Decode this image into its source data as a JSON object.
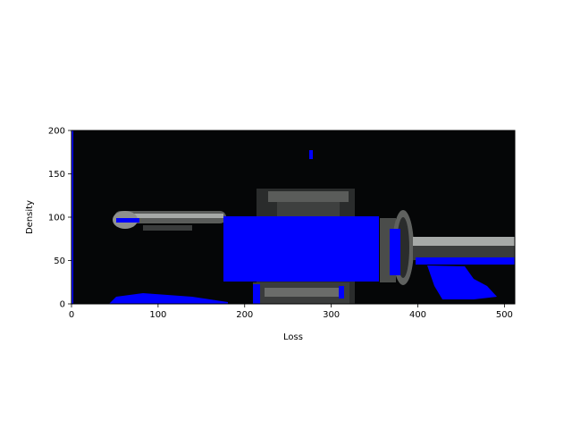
{
  "chart_data": {
    "type": "heatmap",
    "title": "",
    "xlabel": "Loss",
    "ylabel": "Density",
    "xlim": [
      0,
      512
    ],
    "ylim": [
      0,
      200
    ],
    "x_ticks": [
      0,
      100,
      200,
      300,
      400,
      500
    ],
    "y_ticks": [
      0,
      50,
      100,
      150,
      200
    ],
    "grid": false,
    "colors": {
      "background": "#050607",
      "mask": "#0000ff",
      "object_dark": "#2a2c2c",
      "object_mid": "#5a5c5a",
      "object_light": "#a7aaa8",
      "spine": "#000000"
    }
  }
}
